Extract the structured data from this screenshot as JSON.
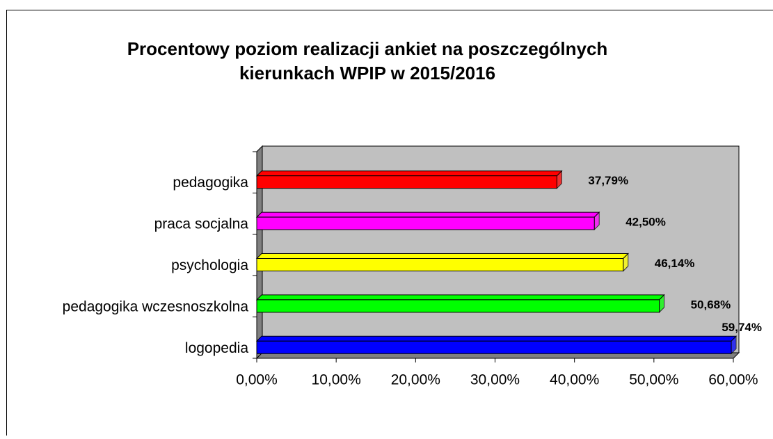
{
  "chart_data": {
    "type": "bar",
    "orientation": "horizontal",
    "title": [
      "Procentowy poziom realizacji ankiet na poszczególnych",
      "kierunkach WPIP w 2015/2016"
    ],
    "categories": [
      "pedagogika",
      "praca socjalna",
      "psychologia",
      "pedagogika wczesnoszkolna",
      "logopedia"
    ],
    "values": [
      37.79,
      42.5,
      46.14,
      50.68,
      59.74
    ],
    "value_labels": [
      "37,79%",
      "42,50%",
      "46,14%",
      "50,68%",
      "59,74%"
    ],
    "colors": [
      "#ff0000",
      "#ff00ff",
      "#ffff00",
      "#00ff00",
      "#0000ff"
    ],
    "xlim": [
      0,
      60
    ],
    "xticks": [
      {
        "value": 0,
        "label": "0,00%"
      },
      {
        "value": 10,
        "label": "10,00%"
      },
      {
        "value": 20,
        "label": "20,00%"
      },
      {
        "value": 30,
        "label": "30,00%"
      },
      {
        "value": 40,
        "label": "40,00%"
      },
      {
        "value": 50,
        "label": "50,00%"
      },
      {
        "value": 60,
        "label": "60,00%"
      }
    ]
  }
}
